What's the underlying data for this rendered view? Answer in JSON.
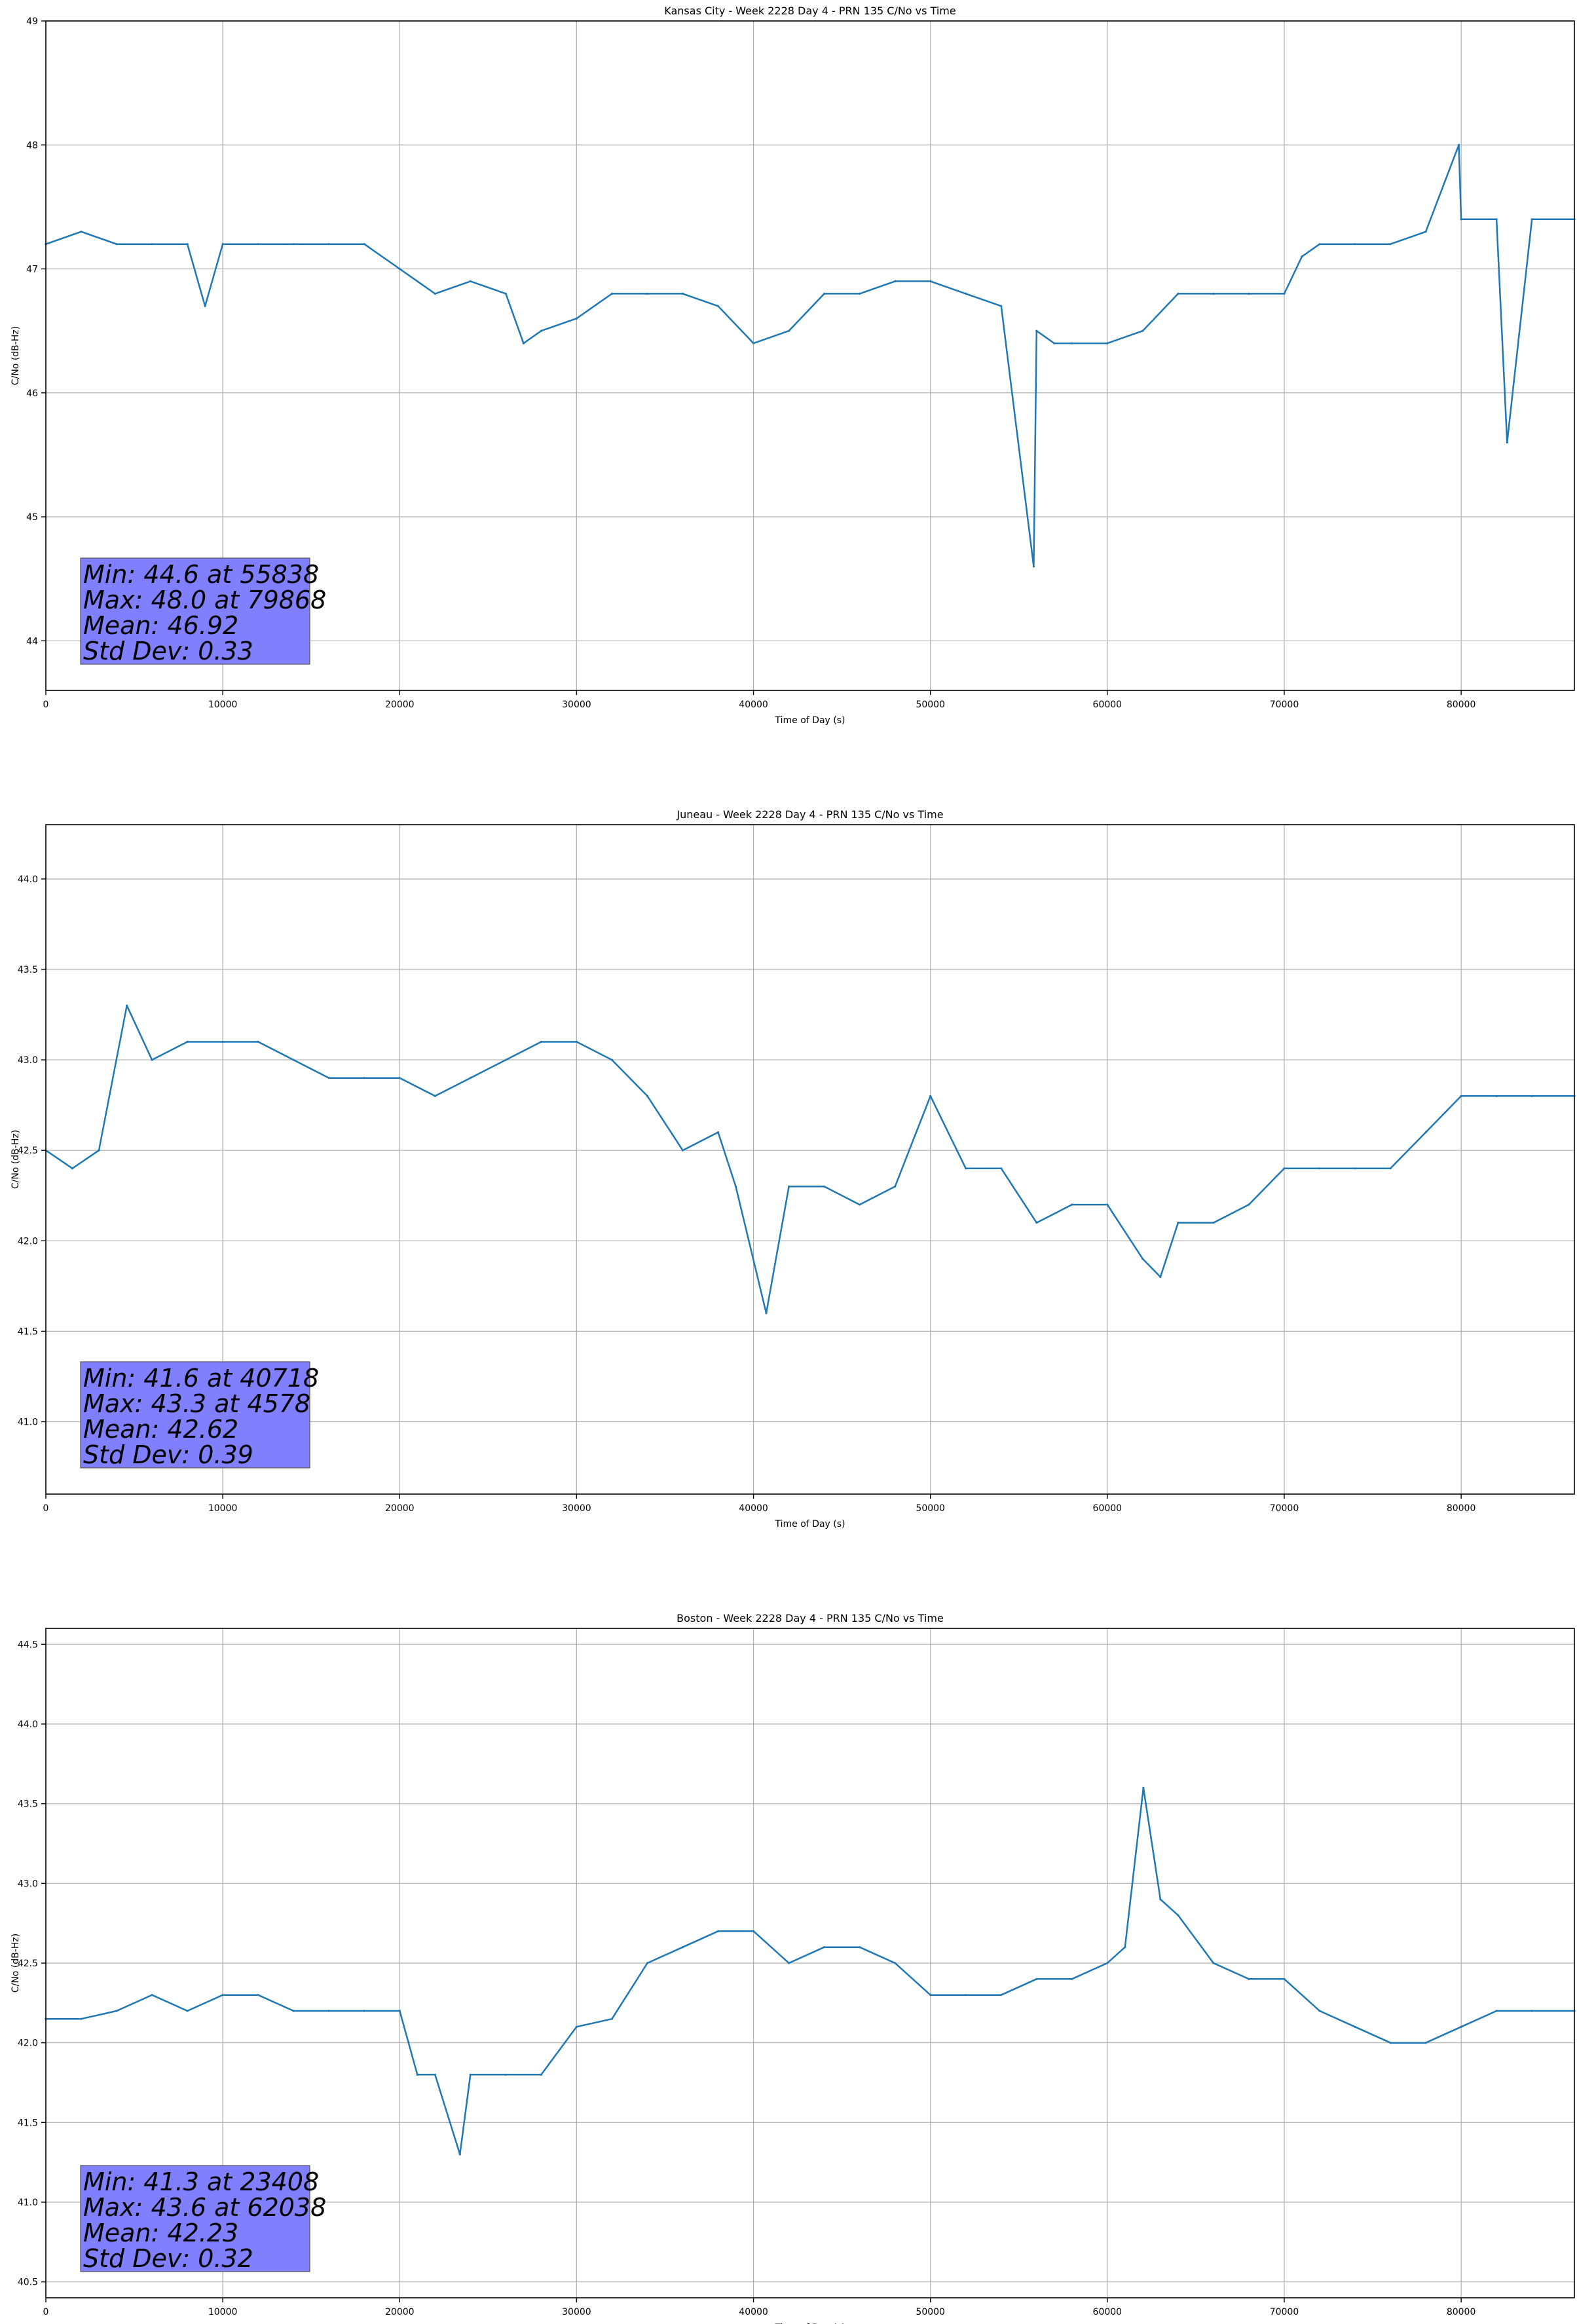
{
  "chart_data": [
    {
      "type": "line",
      "title": "Kansas City - Week 2228 Day 4 - PRN 135 C/No vs Time",
      "xlabel": "Time of Day (s)",
      "ylabel": "C/No (dB-Hz)",
      "xlim": [
        0,
        86400
      ],
      "ylim": [
        43.6,
        49.0
      ],
      "xticks": [
        0,
        10000,
        20000,
        30000,
        40000,
        50000,
        60000,
        70000,
        80000
      ],
      "yticks": [
        44,
        45,
        46,
        47,
        48,
        49
      ],
      "grid": true,
      "series": [
        {
          "color": "#1f77b4",
          "x": [
            0,
            2000,
            4000,
            6000,
            8000,
            9000,
            10000,
            12000,
            14000,
            16000,
            18000,
            20000,
            22000,
            24000,
            26000,
            27000,
            28000,
            30000,
            32000,
            34000,
            36000,
            38000,
            40000,
            42000,
            44000,
            46000,
            48000,
            50000,
            52000,
            54000,
            55838,
            56000,
            57000,
            58000,
            60000,
            62000,
            64000,
            66000,
            68000,
            70000,
            71000,
            72000,
            74000,
            76000,
            78000,
            79868,
            80000,
            82000,
            82600,
            84000,
            86400
          ],
          "y": [
            47.2,
            47.3,
            47.2,
            47.2,
            47.2,
            46.7,
            47.2,
            47.2,
            47.2,
            47.2,
            47.2,
            47.0,
            46.8,
            46.9,
            46.8,
            46.4,
            46.5,
            46.6,
            46.8,
            46.8,
            46.8,
            46.7,
            46.4,
            46.5,
            46.8,
            46.8,
            46.9,
            46.9,
            46.8,
            46.7,
            44.6,
            46.5,
            46.4,
            46.4,
            46.4,
            46.5,
            46.8,
            46.8,
            46.8,
            46.8,
            47.1,
            47.2,
            47.2,
            47.2,
            47.3,
            48.0,
            47.4,
            47.4,
            45.6,
            47.4,
            47.4
          ]
        }
      ],
      "annotation": [
        "Min: 44.6 at 55838",
        "Max: 48.0 at 79868",
        "Mean: 46.92",
        "Std Dev: 0.33"
      ],
      "annotation_color": "#8080ff"
    },
    {
      "type": "line",
      "title": "Juneau - Week 2228 Day 4 - PRN 135 C/No vs Time",
      "xlabel": "Time of Day (s)",
      "ylabel": "C/No (dB-Hz)",
      "xlim": [
        0,
        86400
      ],
      "ylim": [
        40.6,
        44.3
      ],
      "xticks": [
        0,
        10000,
        20000,
        30000,
        40000,
        50000,
        60000,
        70000,
        80000
      ],
      "yticks": [
        41.0,
        41.5,
        42.0,
        42.5,
        43.0,
        43.5,
        44.0
      ],
      "grid": true,
      "series": [
        {
          "color": "#1f77b4",
          "x": [
            0,
            1500,
            3000,
            4578,
            6000,
            8000,
            10000,
            12000,
            14000,
            16000,
            18000,
            20000,
            22000,
            24000,
            26000,
            28000,
            30000,
            32000,
            34000,
            36000,
            38000,
            39000,
            40718,
            42000,
            44000,
            46000,
            48000,
            50000,
            52000,
            54000,
            56000,
            58000,
            60000,
            62000,
            63000,
            64000,
            66000,
            68000,
            70000,
            72000,
            74000,
            76000,
            78000,
            80000,
            82000,
            84000,
            86400
          ],
          "y": [
            42.5,
            42.4,
            42.5,
            43.3,
            43.0,
            43.1,
            43.1,
            43.1,
            43.0,
            42.9,
            42.9,
            42.9,
            42.8,
            42.9,
            43.0,
            43.1,
            43.1,
            43.0,
            42.8,
            42.5,
            42.6,
            42.3,
            41.6,
            42.3,
            42.3,
            42.2,
            42.3,
            42.8,
            42.4,
            42.4,
            42.1,
            42.2,
            42.2,
            41.9,
            41.8,
            42.1,
            42.1,
            42.2,
            42.4,
            42.4,
            42.4,
            42.4,
            42.6,
            42.8,
            42.8,
            42.8,
            42.8
          ]
        }
      ],
      "annotation": [
        "Min: 41.6 at 40718",
        "Max: 43.3 at 4578",
        "Mean: 42.62",
        "Std Dev: 0.39"
      ],
      "annotation_color": "#8080ff"
    },
    {
      "type": "line",
      "title": "Boston - Week 2228 Day 4 - PRN 135 C/No vs Time",
      "xlabel": "Time of Day (s)",
      "ylabel": "C/No (dB-Hz)",
      "xlim": [
        0,
        86400
      ],
      "ylim": [
        40.4,
        44.6
      ],
      "xticks": [
        0,
        10000,
        20000,
        30000,
        40000,
        50000,
        60000,
        70000,
        80000
      ],
      "yticks": [
        40.5,
        41.0,
        41.5,
        42.0,
        42.5,
        43.0,
        43.5,
        44.0,
        44.5
      ],
      "grid": true,
      "series": [
        {
          "color": "#1f77b4",
          "x": [
            0,
            2000,
            4000,
            6000,
            8000,
            10000,
            12000,
            14000,
            16000,
            18000,
            20000,
            21000,
            22000,
            23408,
            24000,
            26000,
            28000,
            30000,
            32000,
            34000,
            36000,
            38000,
            40000,
            42000,
            44000,
            46000,
            48000,
            50000,
            52000,
            54000,
            56000,
            58000,
            60000,
            61000,
            62038,
            63000,
            64000,
            66000,
            68000,
            70000,
            72000,
            74000,
            76000,
            78000,
            80000,
            82000,
            84000,
            86400
          ],
          "y": [
            42.15,
            42.15,
            42.2,
            42.3,
            42.2,
            42.3,
            42.3,
            42.2,
            42.2,
            42.2,
            42.2,
            41.8,
            41.8,
            41.3,
            41.8,
            41.8,
            41.8,
            42.1,
            42.15,
            42.5,
            42.6,
            42.7,
            42.7,
            42.5,
            42.6,
            42.6,
            42.5,
            42.3,
            42.3,
            42.3,
            42.4,
            42.4,
            42.5,
            42.6,
            43.6,
            42.9,
            42.8,
            42.5,
            42.4,
            42.4,
            42.2,
            42.1,
            42.0,
            42.0,
            42.1,
            42.2,
            42.2,
            42.2
          ]
        }
      ],
      "annotation": [
        "Min: 41.3 at 23408",
        "Max: 43.6 at 62038",
        "Mean: 42.23",
        "Std Dev: 0.32"
      ],
      "annotation_color": "#8080ff"
    }
  ]
}
